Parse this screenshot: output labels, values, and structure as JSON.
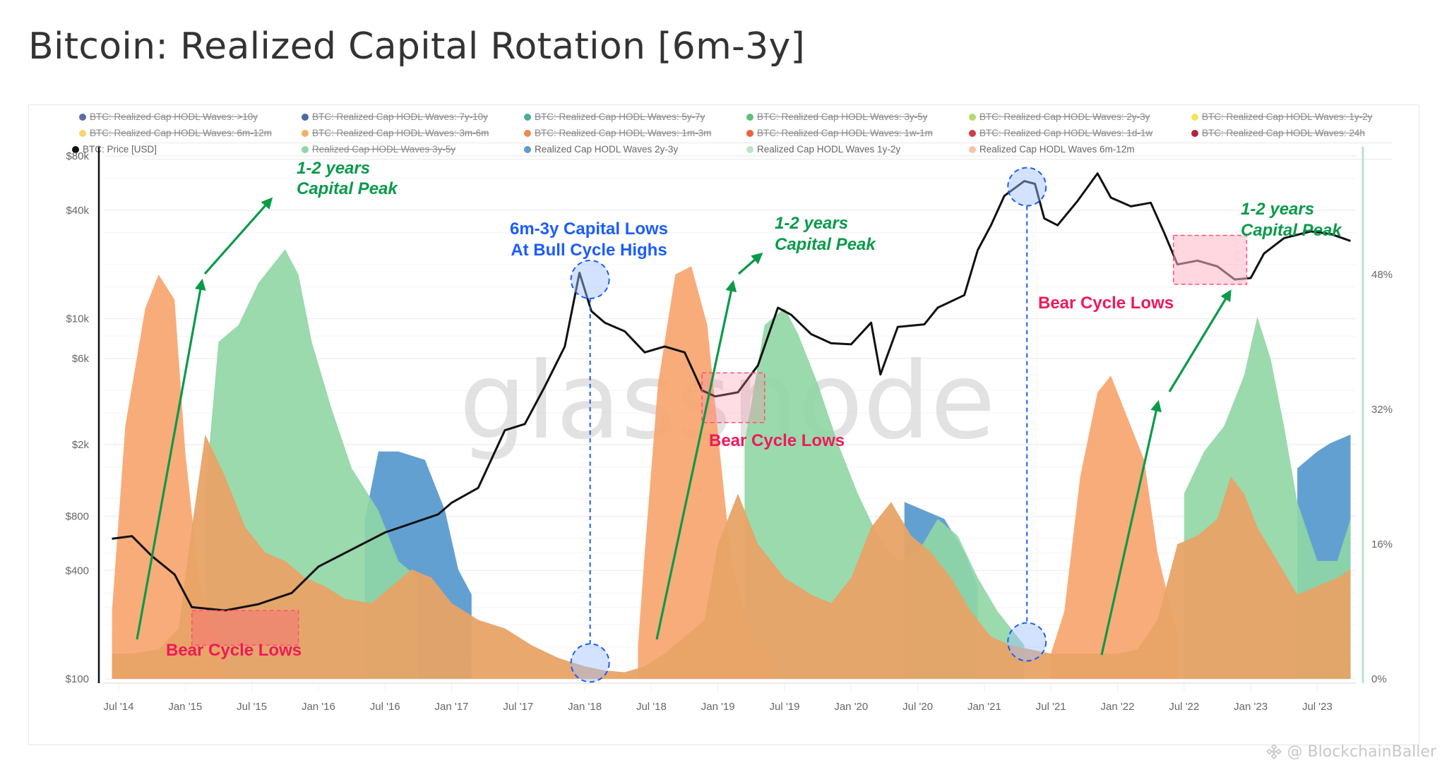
{
  "title": "Bitcoin: Realized Capital Rotation [6m-3y]",
  "legend": [
    {
      "label": "BTC: Realized Cap HODL Waves: >10y",
      "color": "#5b6aa8",
      "enabled": false
    },
    {
      "label": "BTC: Realized Cap HODL Waves: 7y-10y",
      "color": "#4a69a6",
      "enabled": false
    },
    {
      "label": "BTC: Realized Cap HODL Waves: 5y-7y",
      "color": "#4bae97",
      "enabled": false
    },
    {
      "label": "BTC: Realized Cap HODL Waves: 3y-5y",
      "color": "#5fbf7a",
      "enabled": false
    },
    {
      "label": "BTC: Realized Cap HODL Waves: 2y-3y",
      "color": "#b5d96b",
      "enabled": false
    },
    {
      "label": "BTC: Realized Cap HODL Waves: 1y-2y",
      "color": "#f2e45a",
      "enabled": false
    },
    {
      "label": "BTC: Realized Cap HODL Waves: 6m-12m",
      "color": "#f7d56b",
      "enabled": false
    },
    {
      "label": "BTC: Realized Cap HODL Waves: 3m-6m",
      "color": "#f2b26b",
      "enabled": false
    },
    {
      "label": "BTC: Realized Cap HODL Waves: 1m-3m",
      "color": "#ec8a4f",
      "enabled": false
    },
    {
      "label": "BTC: Realized Cap HODL Waves: 1w-1m",
      "color": "#e8613d",
      "enabled": false
    },
    {
      "label": "BTC: Realized Cap HODL Waves: 1d-1w",
      "color": "#d33b48",
      "enabled": false
    },
    {
      "label": "BTC: Realized Cap HODL Waves: 24h",
      "color": "#b2263d",
      "enabled": false
    },
    {
      "label": "BTC: Price [USD]",
      "color": "#111111",
      "enabled": true
    },
    {
      "label": "Realized Cap HODL Waves 3y-5y",
      "color": "#8fd6a4",
      "enabled": false
    },
    {
      "label": "Realized Cap HODL Waves 2y-3y",
      "color": "#5b9bd0",
      "enabled": true
    },
    {
      "label": "Realized Cap HODL Waves 1y-2y",
      "color": "#b9e4c6",
      "enabled": true
    },
    {
      "label": "Realized Cap HODL Waves 6m-12m",
      "color": "#f9c3a6",
      "enabled": true
    }
  ],
  "watermark": "@ BlockchainBaller",
  "brand_watermark": "glassnode",
  "chart_data": {
    "type": "area",
    "title": "Bitcoin: Realized Capital Rotation [6m-3y]",
    "x_ticks": [
      "Jul '14",
      "Jan '15",
      "Jul '15",
      "Jan '16",
      "Jul '16",
      "Jan '17",
      "Jul '17",
      "Jan '18",
      "Jul '18",
      "Jan '19",
      "Jul '19",
      "Jan '20",
      "Jul '20",
      "Jan '21",
      "Jul '21",
      "Jan '22",
      "Jul '22",
      "Jan '23",
      "Jul '23"
    ],
    "x_range": [
      2014.4,
      2023.75
    ],
    "y_left": {
      "label": "BTC: Price [USD]",
      "scale": "log",
      "range": [
        100,
        80000
      ],
      "ticks": [
        "$100",
        "$400",
        "$800",
        "$2k",
        "$6k",
        "$10k",
        "$40k",
        "$80k"
      ],
      "tick_values": [
        100,
        400,
        800,
        2000,
        6000,
        10000,
        40000,
        80000
      ]
    },
    "y_right": {
      "label": "Realized Cap HODL Waves",
      "scale": "linear",
      "range": [
        0,
        56
      ],
      "ticks": [
        "0%",
        "16%",
        "32%",
        "48%"
      ],
      "tick_values": [
        0,
        16,
        32,
        48
      ]
    },
    "grid": true,
    "legend_position": "top",
    "series": [
      {
        "name": "Realized Cap HODL Waves 6m-12m (orange, stacked base)",
        "axis": "right",
        "color": "#e8a366",
        "points": [
          [
            2014.45,
            3
          ],
          [
            2014.6,
            3
          ],
          [
            2014.8,
            3.5
          ],
          [
            2014.95,
            6
          ],
          [
            2015.05,
            18
          ],
          [
            2015.15,
            29
          ],
          [
            2015.3,
            24
          ],
          [
            2015.45,
            18
          ],
          [
            2015.6,
            15
          ],
          [
            2015.75,
            14
          ],
          [
            2015.9,
            12
          ],
          [
            2016.05,
            11
          ],
          [
            2016.2,
            9.5
          ],
          [
            2016.4,
            9
          ],
          [
            2016.55,
            11
          ],
          [
            2016.7,
            13
          ],
          [
            2016.85,
            12
          ],
          [
            2017.0,
            9
          ],
          [
            2017.2,
            7
          ],
          [
            2017.4,
            6
          ],
          [
            2017.6,
            4
          ],
          [
            2017.8,
            2.5
          ],
          [
            2018.0,
            1.5
          ],
          [
            2018.15,
            1
          ],
          [
            2018.3,
            0.8
          ],
          [
            2018.45,
            1.5
          ],
          [
            2018.6,
            3
          ],
          [
            2018.75,
            5
          ],
          [
            2018.9,
            7
          ],
          [
            2019.0,
            16
          ],
          [
            2019.15,
            22
          ],
          [
            2019.3,
            16
          ],
          [
            2019.5,
            12
          ],
          [
            2019.7,
            10
          ],
          [
            2019.85,
            9
          ],
          [
            2020.0,
            12
          ],
          [
            2020.15,
            18
          ],
          [
            2020.3,
            21
          ],
          [
            2020.45,
            17
          ],
          [
            2020.6,
            15
          ],
          [
            2020.75,
            12
          ],
          [
            2020.9,
            8
          ],
          [
            2021.05,
            5
          ],
          [
            2021.2,
            4
          ],
          [
            2021.35,
            3.5
          ],
          [
            2021.5,
            3
          ],
          [
            2021.7,
            3
          ],
          [
            2021.85,
            3
          ],
          [
            2022.0,
            3
          ],
          [
            2022.15,
            3.5
          ],
          [
            2022.3,
            7
          ],
          [
            2022.45,
            16
          ],
          [
            2022.6,
            17
          ],
          [
            2022.75,
            19
          ],
          [
            2022.85,
            24
          ],
          [
            2022.95,
            22
          ],
          [
            2023.05,
            18
          ],
          [
            2023.2,
            14
          ],
          [
            2023.35,
            10
          ],
          [
            2023.5,
            11
          ],
          [
            2023.65,
            12
          ],
          [
            2023.75,
            13
          ]
        ]
      },
      {
        "name": "Realized Cap HODL Waves 6m-12m (light orange peak)",
        "axis": "right",
        "color": "#f7a56f",
        "points": [
          [
            2014.45,
            8
          ],
          [
            2014.55,
            30
          ],
          [
            2014.7,
            44
          ],
          [
            2014.8,
            48
          ],
          [
            2014.92,
            45
          ],
          [
            2015.0,
            27
          ],
          [
            2015.1,
            12
          ],
          [
            2015.2,
            6
          ],
          [
            2015.3,
            3
          ],
          [
            2018.4,
            4
          ],
          [
            2018.45,
            15
          ],
          [
            2018.55,
            35
          ],
          [
            2018.68,
            48
          ],
          [
            2018.8,
            49
          ],
          [
            2018.92,
            42
          ],
          [
            2019.02,
            26
          ],
          [
            2019.1,
            14
          ],
          [
            2019.25,
            5
          ],
          [
            2019.4,
            3
          ],
          [
            2021.5,
            3
          ],
          [
            2021.6,
            8
          ],
          [
            2021.72,
            24
          ],
          [
            2021.85,
            34
          ],
          [
            2021.95,
            36
          ],
          [
            2022.05,
            32
          ],
          [
            2022.2,
            26
          ],
          [
            2022.3,
            15
          ],
          [
            2022.45,
            5
          ]
        ]
      },
      {
        "name": "Realized Cap HODL Waves 1y-2y (green)",
        "axis": "right",
        "color": "#8fd6a4",
        "points": [
          [
            2015.15,
            22
          ],
          [
            2015.25,
            40
          ],
          [
            2015.4,
            42
          ],
          [
            2015.55,
            47
          ],
          [
            2015.75,
            51
          ],
          [
            2015.85,
            48
          ],
          [
            2015.95,
            40
          ],
          [
            2016.1,
            32
          ],
          [
            2016.25,
            25
          ],
          [
            2016.45,
            20
          ],
          [
            2016.6,
            14
          ],
          [
            2016.75,
            12
          ],
          [
            2019.2,
            28
          ],
          [
            2019.35,
            42
          ],
          [
            2019.5,
            44
          ],
          [
            2019.6,
            41
          ],
          [
            2019.75,
            35
          ],
          [
            2019.9,
            28
          ],
          [
            2020.05,
            22
          ],
          [
            2020.2,
            17
          ],
          [
            2020.35,
            14
          ],
          [
            2020.5,
            15
          ],
          [
            2020.65,
            19
          ],
          [
            2020.8,
            17
          ],
          [
            2020.95,
            12
          ],
          [
            2021.1,
            8
          ],
          [
            2021.3,
            4
          ],
          [
            2022.5,
            22
          ],
          [
            2022.65,
            27
          ],
          [
            2022.8,
            30
          ],
          [
            2022.95,
            36
          ],
          [
            2023.05,
            43
          ],
          [
            2023.15,
            38
          ],
          [
            2023.25,
            30
          ],
          [
            2023.35,
            21
          ],
          [
            2023.5,
            14
          ],
          [
            2023.65,
            14
          ],
          [
            2023.75,
            19
          ]
        ]
      },
      {
        "name": "Realized Cap HODL Waves 2y-3y (blue)",
        "axis": "right",
        "color": "#5b9bd0",
        "points": [
          [
            2016.35,
            19
          ],
          [
            2016.45,
            27
          ],
          [
            2016.6,
            27
          ],
          [
            2016.8,
            26
          ],
          [
            2016.95,
            20
          ],
          [
            2017.05,
            13
          ],
          [
            2017.15,
            10
          ],
          [
            2020.4,
            21
          ],
          [
            2020.55,
            20
          ],
          [
            2020.7,
            19
          ],
          [
            2020.85,
            15
          ],
          [
            2020.95,
            11
          ],
          [
            2023.35,
            25
          ],
          [
            2023.5,
            27
          ],
          [
            2023.6,
            28
          ],
          [
            2023.75,
            29
          ]
        ]
      },
      {
        "name": "BTC: Price [USD]",
        "axis": "left",
        "color": "#111111",
        "points": [
          [
            2014.45,
            600
          ],
          [
            2014.6,
            620
          ],
          [
            2014.75,
            480
          ],
          [
            2014.92,
            380
          ],
          [
            2015.05,
            250
          ],
          [
            2015.3,
            240
          ],
          [
            2015.55,
            260
          ],
          [
            2015.8,
            300
          ],
          [
            2016.0,
            420
          ],
          [
            2016.5,
            650
          ],
          [
            2016.9,
            820
          ],
          [
            2017.0,
            950
          ],
          [
            2017.2,
            1150
          ],
          [
            2017.4,
            2400
          ],
          [
            2017.55,
            2600
          ],
          [
            2017.7,
            4200
          ],
          [
            2017.85,
            7000
          ],
          [
            2017.96,
            18000
          ],
          [
            2018.05,
            11000
          ],
          [
            2018.15,
            9500
          ],
          [
            2018.3,
            8500
          ],
          [
            2018.45,
            6500
          ],
          [
            2018.6,
            7000
          ],
          [
            2018.75,
            6500
          ],
          [
            2018.88,
            4000
          ],
          [
            2018.98,
            3700
          ],
          [
            2019.15,
            3900
          ],
          [
            2019.3,
            5500
          ],
          [
            2019.45,
            11500
          ],
          [
            2019.55,
            10500
          ],
          [
            2019.7,
            8200
          ],
          [
            2019.85,
            7300
          ],
          [
            2020.0,
            7200
          ],
          [
            2020.15,
            9500
          ],
          [
            2020.22,
            4900
          ],
          [
            2020.35,
            9000
          ],
          [
            2020.55,
            9300
          ],
          [
            2020.65,
            11500
          ],
          [
            2020.85,
            13500
          ],
          [
            2020.95,
            24000
          ],
          [
            2021.05,
            33000
          ],
          [
            2021.15,
            48000
          ],
          [
            2021.3,
            58000
          ],
          [
            2021.38,
            56000
          ],
          [
            2021.45,
            36000
          ],
          [
            2021.55,
            33000
          ],
          [
            2021.7,
            45000
          ],
          [
            2021.85,
            64000
          ],
          [
            2021.95,
            47000
          ],
          [
            2022.1,
            42000
          ],
          [
            2022.25,
            44000
          ],
          [
            2022.35,
            30000
          ],
          [
            2022.45,
            20000
          ],
          [
            2022.6,
            21000
          ],
          [
            2022.75,
            19500
          ],
          [
            2022.88,
            16500
          ],
          [
            2023.0,
            16800
          ],
          [
            2023.1,
            23000
          ],
          [
            2023.25,
            28000
          ],
          [
            2023.45,
            30500
          ],
          [
            2023.6,
            29500
          ],
          [
            2023.75,
            27000
          ]
        ]
      }
    ],
    "annotations": [
      {
        "text": "1-2 years",
        "sub": "Capital Peak",
        "color": "#0a9a4a",
        "x": 2015.85,
        "yPrice": 65000
      },
      {
        "text": "6m-3y Capital Lows",
        "sub": "At Bull Cycle Highs",
        "color": "#1a5cff",
        "x": 2018.0,
        "yPrice": 30000
      },
      {
        "text": "1-2 years",
        "sub": "Capital Peak",
        "color": "#0a9a4a",
        "x": 2019.55,
        "yPrice": 29000
      },
      {
        "text": "1-2 years",
        "sub": "Capital Peak",
        "color": "#0a9a4a",
        "x": 2023.15,
        "yPrice": 35000
      },
      {
        "text": "Bear Cycle Lows",
        "color": "#f0195a",
        "x": 2015.35,
        "yPct": 2.3
      },
      {
        "text": "Bear Cycle Lows",
        "color": "#f0195a",
        "x": 2019.45,
        "yPrice": 1600
      },
      {
        "text": "Bear Cycle Lows",
        "color": "#f0195a",
        "x": 2021.75,
        "yPrice": 9400
      }
    ]
  }
}
